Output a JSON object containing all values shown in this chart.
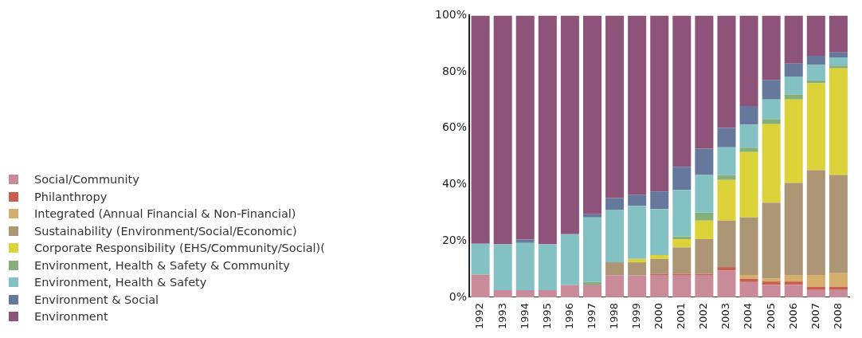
{
  "chart_data": {
    "type": "bar",
    "stacked": true,
    "legend": "left",
    "grid": false,
    "categories": [
      "1992",
      "1993",
      "1994",
      "1995",
      "1996",
      "1997",
      "1998",
      "1999",
      "2000",
      "2001",
      "2002",
      "2003",
      "2004",
      "2005",
      "2006",
      "2007",
      "2008"
    ],
    "ylim": [
      0,
      100
    ],
    "yticks": [
      {
        "value": 0,
        "label": "0%"
      },
      {
        "value": 20,
        "label": "20%"
      },
      {
        "value": 40,
        "label": "40%"
      },
      {
        "value": 60,
        "label": "60%"
      },
      {
        "value": 80,
        "label": "80%"
      },
      {
        "value": 100,
        "label": "100%"
      }
    ],
    "series": [
      {
        "name": "Social/Community",
        "color": "#c98a9a",
        "values": [
          8,
          2.5,
          2.5,
          2.5,
          4.3,
          4.5,
          7.7,
          7.7,
          7.9,
          7.9,
          7.9,
          9.5,
          5.4,
          4.4,
          4.4,
          2.6,
          2.6
        ]
      },
      {
        "name": "Philanthropy",
        "color": "#c9604f",
        "values": [
          0,
          0,
          0,
          0,
          0,
          0,
          0,
          0,
          0.4,
          0.4,
          0.4,
          1.2,
          1.2,
          1.2,
          1.2,
          1.1,
          1.1
        ]
      },
      {
        "name": "Integrated (Annual Financial & Non-Financial)",
        "color": "#d4ae6a",
        "values": [
          0,
          0,
          0,
          0,
          0,
          0,
          0,
          0,
          0,
          0,
          0,
          0,
          1.3,
          1.1,
          2.3,
          4.2,
          4.8
        ]
      },
      {
        "name": "Sustainability (Environment/Social/Economic)",
        "color": "#ac9675",
        "values": [
          0,
          0,
          0,
          0,
          0,
          0,
          4.7,
          4.7,
          5.3,
          9.4,
          12.3,
          16.5,
          20.4,
          26.9,
          32.7,
          37.2,
          34.9
        ]
      },
      {
        "name": "Corporate Responsibility (EHS/Community/Social)(",
        "color": "#dcd33a",
        "values": [
          0,
          0,
          0,
          0,
          0,
          0,
          0,
          1.2,
          1.4,
          2.9,
          6.6,
          14.4,
          23.2,
          27.8,
          29.6,
          30.8,
          37.8
        ]
      },
      {
        "name": "Environment, Health & Safety & Community",
        "color": "#86b07a",
        "values": [
          0,
          0,
          0,
          0,
          0,
          0.9,
          0,
          0,
          0,
          1,
          2.8,
          1.7,
          1.6,
          1.9,
          1.7,
          1.1,
          1
        ]
      },
      {
        "name": "Environment, Health & Safety",
        "color": "#84c1c2",
        "values": [
          11,
          16.3,
          16.8,
          16.3,
          18.1,
          22.9,
          18.7,
          18.8,
          16.3,
          16.5,
          13.4,
          9.9,
          8.2,
          6.9,
          6.4,
          5.4,
          2.9
        ]
      },
      {
        "name": "Environment & Social",
        "color": "#66789b",
        "values": [
          0,
          0,
          1.2,
          0,
          0,
          1.2,
          4.1,
          4,
          6.2,
          8.2,
          9.3,
          6.9,
          6.6,
          6.9,
          4.6,
          3.3,
          1.8
        ]
      },
      {
        "name": "Environment",
        "color": "#8e5378",
        "values": [
          81,
          81.2,
          79.5,
          81.2,
          77.6,
          70.5,
          64.8,
          63.6,
          62.5,
          53.7,
          47.3,
          39.9,
          32.1,
          22.9,
          17.1,
          14.3,
          13.1
        ]
      }
    ]
  }
}
